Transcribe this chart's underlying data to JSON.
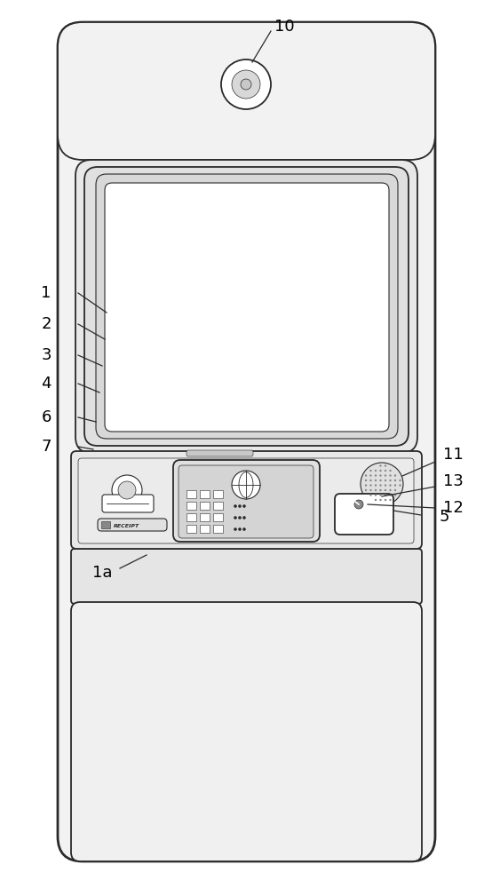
{
  "bg_color": "#ffffff",
  "line_color": "#2a2a2a",
  "fill_outer": "#f2f2f2",
  "fill_panel": "#e8e8e8",
  "fill_screen": "#ffffff",
  "fill_bezel": "#d8d8d8",
  "fill_mid": "#e0e0e0",
  "fill_dark": "#c8c8c8",
  "fill_lower": "#f0f0f0"
}
